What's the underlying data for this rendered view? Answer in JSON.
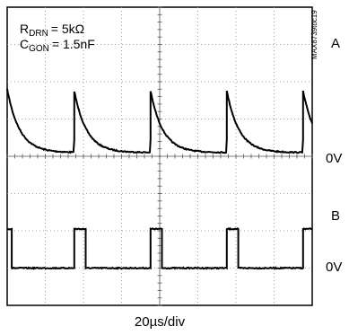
{
  "chart_data": {
    "type": "line",
    "annotations": {
      "r_drn": {
        "symbol": "R",
        "subscript": "DRN",
        "value": "= 5kΩ"
      },
      "c_gon": {
        "symbol": "C",
        "subscript": "GON",
        "value": "= 1.5nF"
      }
    },
    "figure_id": "MAX8739toc19",
    "channel_labels": [
      {
        "name": "A",
        "level_label": "0V"
      },
      {
        "name": "B",
        "level_label": "0V"
      }
    ],
    "xlabel": "20µs/div",
    "grid": true,
    "divisions": {
      "x": 8,
      "y": 8
    },
    "time_per_div_us": 20,
    "xlim_us": [
      0,
      160
    ],
    "pulse_period_us": 40,
    "series": [
      {
        "name": "A",
        "description_free": false,
        "rise_times_us": [
          0,
          35,
          75,
          115,
          155
        ],
        "high_level_div": 1.8,
        "low_level_div": 0.1,
        "decay_tau_us": 6.5,
        "partial_start_level_div": 1.8
      },
      {
        "name": "B",
        "high_level_div": 1.05,
        "low_level_div": 0.0,
        "high_intervals_us": [
          [
            0,
            2
          ],
          [
            35,
            41
          ],
          [
            75,
            81
          ],
          [
            115,
            121
          ],
          [
            155,
            160
          ]
        ]
      }
    ]
  }
}
